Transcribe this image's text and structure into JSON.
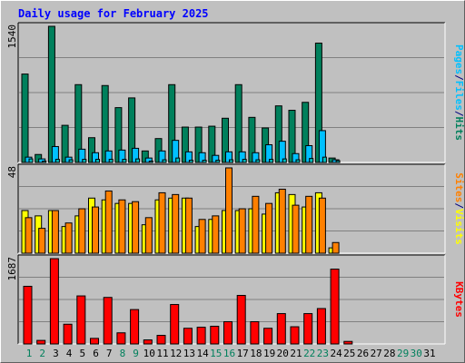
{
  "title": "Daily usage for February 2025",
  "colors": {
    "hits": "#00805c",
    "files": "#00c0ff",
    "sites": "#ff8000",
    "visits": "#ffff00",
    "kbytes": "#ff0000",
    "panel": "#c0c0c0",
    "day_normal": "#000000",
    "day_weekend": "#00805c"
  },
  "chart_data": [
    {
      "type": "bar",
      "ylim": [
        0,
        1540
      ],
      "max_label": "1540",
      "legend": [
        "Pages",
        "/",
        "Files",
        "/",
        "Hits"
      ],
      "series": [
        {
          "name": "Hits",
          "values": [
            1000,
            90,
            1540,
            420,
            880,
            280,
            870,
            620,
            730,
            130,
            270,
            880,
            400,
            400,
            410,
            500,
            880,
            510,
            390,
            640,
            590,
            680,
            1350,
            50,
            0,
            0,
            0,
            0
          ]
        },
        {
          "name": "Files",
          "values": [
            60,
            40,
            180,
            60,
            150,
            110,
            130,
            140,
            160,
            50,
            130,
            250,
            120,
            110,
            80,
            120,
            120,
            110,
            200,
            240,
            100,
            190,
            360,
            30,
            0,
            0,
            0,
            0
          ]
        },
        {
          "name": "Pages",
          "values": [
            40,
            15,
            35,
            30,
            35,
            35,
            35,
            35,
            40,
            15,
            30,
            50,
            25,
            25,
            25,
            30,
            35,
            30,
            35,
            40,
            30,
            45,
            60,
            20,
            0,
            0,
            0,
            0
          ]
        }
      ]
    },
    {
      "type": "bar",
      "ylim": [
        0,
        48
      ],
      "max_label": "48",
      "legend": [
        "Sites",
        "/",
        "Visits"
      ],
      "series": [
        {
          "name": "Visits",
          "values": [
            24,
            21,
            24,
            15,
            21,
            31,
            30,
            28,
            28,
            16,
            30,
            31,
            31,
            15,
            19,
            24,
            24,
            25,
            22,
            34,
            33,
            26,
            34,
            3,
            0,
            0,
            0,
            0
          ]
        },
        {
          "name": "Sites",
          "values": [
            20,
            14,
            24,
            17,
            25,
            26,
            35,
            30,
            29,
            20,
            34,
            33,
            31,
            19,
            21,
            48,
            25,
            32,
            28,
            36,
            27,
            32,
            31,
            6,
            0,
            0,
            0,
            0
          ]
        }
      ]
    },
    {
      "type": "bar",
      "ylim": [
        0,
        1687
      ],
      "max_label": "1687",
      "legend": [
        "KBytes"
      ],
      "series": [
        {
          "name": "KBytes",
          "values": [
            1140,
            70,
            1687,
            390,
            950,
            110,
            920,
            220,
            680,
            80,
            170,
            780,
            310,
            330,
            350,
            440,
            960,
            440,
            310,
            600,
            340,
            600,
            700,
            1480,
            50,
            0,
            0,
            0
          ]
        }
      ]
    }
  ],
  "days": [
    "1",
    "2",
    "3",
    "4",
    "5",
    "6",
    "7",
    "8",
    "9",
    "10",
    "11",
    "12",
    "13",
    "14",
    "15",
    "16",
    "17",
    "18",
    "19",
    "20",
    "21",
    "22",
    "23",
    "24",
    "25",
    "26",
    "27",
    "28",
    "29",
    "30",
    "31"
  ],
  "weekend_days": [
    "1",
    "2",
    "8",
    "9",
    "15",
    "16",
    "22",
    "23",
    "29",
    "30"
  ]
}
